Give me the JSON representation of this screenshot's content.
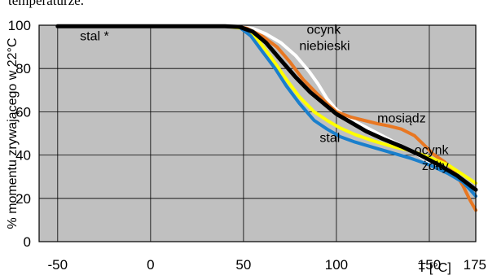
{
  "header_text": "temperaturze.",
  "chart_data": {
    "type": "line",
    "title": "",
    "xlabel": "T [°C]",
    "ylabel": "% momentu zrywającego w 22°C",
    "xlim": [
      -60,
      175
    ],
    "ylim": [
      0,
      100
    ],
    "x_ticks": [
      -50,
      0,
      50,
      100,
      150,
      175
    ],
    "x_tick_labels": [
      "-50",
      "0",
      "50",
      "100",
      "150",
      "175"
    ],
    "y_ticks": [
      0,
      20,
      40,
      60,
      80,
      100
    ],
    "y_tick_labels": [
      "0",
      "20",
      "40",
      "60",
      "80",
      "100"
    ],
    "grid": true,
    "background_color": "#c0c0c0",
    "grid_color": "#000000",
    "series": [
      {
        "name": "ocynk niebieski",
        "color": "#ffffff",
        "width": 4,
        "points": [
          [
            -50,
            99.5
          ],
          [
            0,
            99.5
          ],
          [
            40,
            99.5
          ],
          [
            48,
            99.3
          ],
          [
            55,
            98.5
          ],
          [
            62,
            96
          ],
          [
            70,
            92
          ],
          [
            78,
            86
          ],
          [
            85,
            79
          ],
          [
            90,
            73
          ],
          [
            95,
            66
          ],
          [
            100,
            61
          ],
          [
            105,
            58
          ],
          [
            110,
            55.5
          ],
          [
            120,
            51
          ],
          [
            130,
            46.5
          ],
          [
            140,
            42
          ],
          [
            150,
            37
          ],
          [
            160,
            32
          ],
          [
            170,
            27
          ],
          [
            175,
            24.5
          ]
        ]
      },
      {
        "name": "mosiądz",
        "color": "#e87722",
        "width": 4,
        "points": [
          [
            -50,
            99.5
          ],
          [
            0,
            99.5
          ],
          [
            40,
            99.5
          ],
          [
            48,
            99.3
          ],
          [
            52,
            98.5
          ],
          [
            60,
            95
          ],
          [
            68,
            90
          ],
          [
            75,
            83
          ],
          [
            82,
            75
          ],
          [
            90,
            68
          ],
          [
            96,
            63
          ],
          [
            100,
            60
          ],
          [
            108,
            57.5
          ],
          [
            115,
            56
          ],
          [
            122,
            54.5
          ],
          [
            128,
            53.5
          ],
          [
            135,
            52
          ],
          [
            142,
            49
          ],
          [
            148,
            44
          ],
          [
            152,
            40.5
          ],
          [
            158,
            37
          ],
          [
            163,
            33
          ],
          [
            168,
            26
          ],
          [
            172,
            19
          ],
          [
            175,
            14.5
          ]
        ]
      },
      {
        "name": "ocynk żółty",
        "color": "#ffff00",
        "width": 4,
        "points": [
          [
            -50,
            99.5
          ],
          [
            0,
            99.5
          ],
          [
            40,
            99.5
          ],
          [
            50,
            98.5
          ],
          [
            58,
            93
          ],
          [
            65,
            85
          ],
          [
            73,
            75
          ],
          [
            80,
            67
          ],
          [
            88,
            60
          ],
          [
            95,
            56
          ],
          [
            102,
            52.5
          ],
          [
            110,
            49.5
          ],
          [
            120,
            46.5
          ],
          [
            130,
            44
          ],
          [
            140,
            42
          ],
          [
            150,
            39
          ],
          [
            160,
            35.5
          ],
          [
            168,
            31
          ],
          [
            175,
            27
          ]
        ]
      },
      {
        "name": "stal",
        "color": "#1a7fcc",
        "width": 4,
        "points": [
          [
            -50,
            99.5
          ],
          [
            0,
            99.5
          ],
          [
            40,
            99.5
          ],
          [
            48,
            99
          ],
          [
            54,
            95
          ],
          [
            60,
            88
          ],
          [
            67,
            80
          ],
          [
            73,
            72
          ],
          [
            80,
            64
          ],
          [
            88,
            56
          ],
          [
            95,
            52
          ],
          [
            102,
            48.5
          ],
          [
            110,
            46
          ],
          [
            120,
            43.5
          ],
          [
            130,
            41
          ],
          [
            140,
            38.5
          ],
          [
            150,
            35.5
          ],
          [
            160,
            31.5
          ],
          [
            168,
            27.5
          ],
          [
            172,
            24
          ],
          [
            175,
            21
          ]
        ]
      },
      {
        "name": "stal *",
        "color": "#000000",
        "width": 5,
        "points": [
          [
            -50,
            99.5
          ],
          [
            0,
            99.5
          ],
          [
            40,
            99.5
          ],
          [
            48,
            99.2
          ],
          [
            55,
            97
          ],
          [
            62,
            92
          ],
          [
            70,
            84
          ],
          [
            78,
            76
          ],
          [
            86,
            69
          ],
          [
            93,
            64
          ],
          [
            100,
            59
          ],
          [
            108,
            55
          ],
          [
            116,
            51
          ],
          [
            125,
            47.5
          ],
          [
            135,
            44
          ],
          [
            145,
            40
          ],
          [
            155,
            35.5
          ],
          [
            165,
            30.5
          ],
          [
            175,
            24
          ]
        ]
      }
    ],
    "annotations": [
      {
        "text": "stal *",
        "x": -38,
        "y": 93
      },
      {
        "text": "ocynk",
        "x": 84,
        "y": 96
      },
      {
        "text": "niebieski",
        "x": 80,
        "y": 88.5
      },
      {
        "text": "mosiądz",
        "x": 122,
        "y": 55
      },
      {
        "text": "stal",
        "x": 91,
        "y": 46
      },
      {
        "text": "ocynk",
        "x": 142,
        "y": 40.5
      },
      {
        "text": "żółty",
        "x": 146,
        "y": 33
      }
    ]
  }
}
